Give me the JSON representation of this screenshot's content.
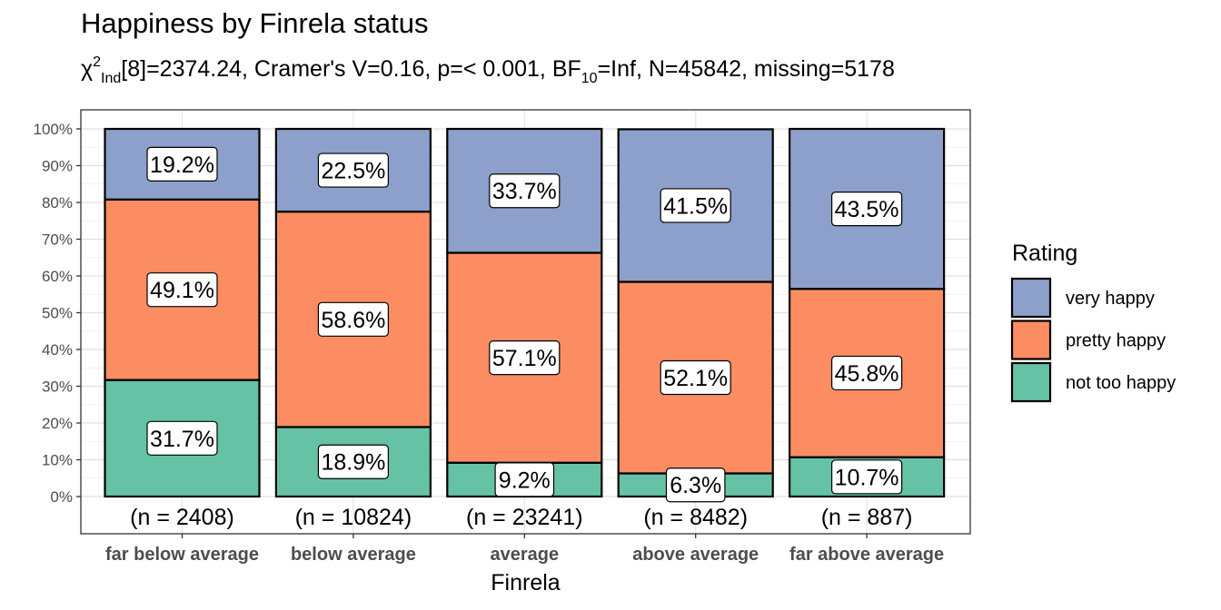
{
  "title": "Happiness by Finrela status",
  "subtitle": {
    "chi_symbol": "χ",
    "chi_sup": "2",
    "chi_sub": "Ind",
    "text1": "[8]=2374.24, Cramer's V=0.16, p=< 0.001, BF",
    "bf_sub": "10",
    "text2": "=Inf, N=45842, missing=5178"
  },
  "chart_data": {
    "type": "bar",
    "stacked": true,
    "percent": true,
    "categories": [
      "far below average",
      "below average",
      "average",
      "above average",
      "far above average"
    ],
    "counts": [
      "(n = 2408)",
      "(n = 10824)",
      "(n = 23241)",
      "(n = 8482)",
      "(n = 887)"
    ],
    "series": [
      {
        "name": "not too happy",
        "color": "#66C2A5",
        "values": [
          31.7,
          18.9,
          9.2,
          6.3,
          10.7
        ],
        "labels": [
          "31.7%",
          "18.9%",
          "9.2%",
          "6.3%",
          "10.7%"
        ]
      },
      {
        "name": "pretty happy",
        "color": "#FC8D62",
        "values": [
          49.1,
          58.6,
          57.1,
          52.1,
          45.8
        ],
        "labels": [
          "49.1%",
          "58.6%",
          "57.1%",
          "52.1%",
          "45.8%"
        ]
      },
      {
        "name": "very happy",
        "color": "#8DA0CB",
        "values": [
          19.2,
          22.5,
          33.7,
          41.5,
          43.5
        ],
        "labels": [
          "19.2%",
          "22.5%",
          "33.7%",
          "41.5%",
          "43.5%"
        ]
      }
    ],
    "xlabel": "Finrela",
    "ylabel": "",
    "ylim": [
      0,
      100
    ],
    "yticks": [
      "0%",
      "10%",
      "20%",
      "30%",
      "40%",
      "50%",
      "60%",
      "70%",
      "80%",
      "90%",
      "100%"
    ],
    "legend_title": "Rating",
    "legend_order": [
      "very happy",
      "pretty happy",
      "not too happy"
    ],
    "legend_position": "right",
    "grid": true
  }
}
